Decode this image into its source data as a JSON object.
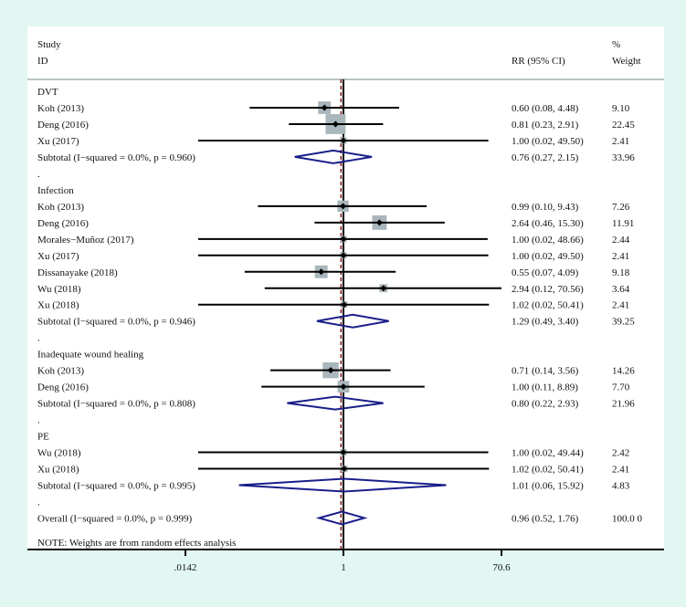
{
  "chart_data": {
    "type": "forest",
    "scale": "log",
    "xlim": [
      0.0142,
      70.6
    ],
    "xticks": [
      ".0142",
      "1",
      "70.6"
    ],
    "null_value": 1,
    "overall_value": 0.96,
    "header": {
      "study": "Study",
      "id": "ID",
      "effect": "RR (95% CI)",
      "weight_pct": "%",
      "weight": "Weight"
    },
    "colors": {
      "box": "#a9b6bb",
      "diamond": "#1a1f8a",
      "null_line": "#000000",
      "overall_line": "#8b1a1a",
      "background": "#e2f7f2"
    },
    "rows": [
      {
        "kind": "group",
        "label": "DVT"
      },
      {
        "kind": "study",
        "label": "Koh (2013)",
        "rr": 0.6,
        "lo": 0.08,
        "hi": 4.48,
        "text": "0.60 (0.08, 4.48)",
        "weight": "9.10"
      },
      {
        "kind": "study",
        "label": "Deng (2016)",
        "rr": 0.81,
        "lo": 0.23,
        "hi": 2.91,
        "text": "0.81 (0.23, 2.91)",
        "weight": "22.45"
      },
      {
        "kind": "study",
        "label": "Xu (2017)",
        "rr": 1.0,
        "lo": 0.02,
        "hi": 49.5,
        "text": "1.00 (0.02, 49.50)",
        "weight": "2.41"
      },
      {
        "kind": "subtotal",
        "label": "Subtotal  (I−squared = 0.0%, p = 0.960)",
        "rr": 0.76,
        "lo": 0.27,
        "hi": 2.15,
        "text": "0.76 (0.27, 2.15)",
        "weight": "33.96"
      },
      {
        "kind": "spacer",
        "label": "."
      },
      {
        "kind": "group",
        "label": "Infection"
      },
      {
        "kind": "study",
        "label": "Koh  (2013)",
        "rr": 0.99,
        "lo": 0.1,
        "hi": 9.43,
        "text": "0.99 (0.10, 9.43)",
        "weight": "7.26"
      },
      {
        "kind": "study",
        "label": "Deng  (2016)",
        "rr": 2.64,
        "lo": 0.46,
        "hi": 15.3,
        "text": "2.64 (0.46, 15.30)",
        "weight": "11.91"
      },
      {
        "kind": "study",
        "label": "Morales−Muñoz (2017)",
        "rr": 1.0,
        "lo": 0.02,
        "hi": 48.66,
        "text": "1.00 (0.02, 48.66)",
        "weight": "2.44"
      },
      {
        "kind": "study",
        "label": "Xu (2017)",
        "rr": 1.0,
        "lo": 0.02,
        "hi": 49.5,
        "text": "1.00 (0.02, 49.50)",
        "weight": "2.41"
      },
      {
        "kind": "study",
        "label": "Dissanayake  (2018)",
        "rr": 0.55,
        "lo": 0.07,
        "hi": 4.09,
        "text": "0.55 (0.07, 4.09)",
        "weight": "9.18"
      },
      {
        "kind": "study",
        "label": "Wu (2018)",
        "rr": 2.94,
        "lo": 0.12,
        "hi": 70.56,
        "text": "2.94 (0.12, 70.56)",
        "weight": "3.64"
      },
      {
        "kind": "study",
        "label": "Xu (2018)",
        "rr": 1.02,
        "lo": 0.02,
        "hi": 50.41,
        "text": "1.02 (0.02, 50.41)",
        "weight": "2.41"
      },
      {
        "kind": "subtotal",
        "label": "Subtotal  (I−squared = 0.0%, p = 0.946)",
        "rr": 1.29,
        "lo": 0.49,
        "hi": 3.4,
        "text": "1.29 (0.49, 3.40)",
        "weight": "39.25"
      },
      {
        "kind": "spacer",
        "label": "."
      },
      {
        "kind": "group",
        "label": "Inadequate wound healing"
      },
      {
        "kind": "study",
        "label": "Koh  (2013)",
        "rr": 0.71,
        "lo": 0.14,
        "hi": 3.56,
        "text": "0.71 (0.14, 3.56)",
        "weight": "14.26"
      },
      {
        "kind": "study",
        "label": "Deng (2016)",
        "rr": 1.0,
        "lo": 0.11,
        "hi": 8.89,
        "text": "1.00 (0.11, 8.89)",
        "weight": "7.70"
      },
      {
        "kind": "subtotal",
        "label": "Subtotal  (I−squared = 0.0%, p = 0.808)",
        "rr": 0.8,
        "lo": 0.22,
        "hi": 2.93,
        "text": "0.80 (0.22, 2.93)",
        "weight": "21.96"
      },
      {
        "kind": "spacer",
        "label": "."
      },
      {
        "kind": "group",
        "label": "PE"
      },
      {
        "kind": "study",
        "label": "Wu (2018)",
        "rr": 1.0,
        "lo": 0.02,
        "hi": 49.44,
        "text": "1.00 (0.02, 49.44)",
        "weight": "2.42"
      },
      {
        "kind": "study",
        "label": "Xu (2018)",
        "rr": 1.02,
        "lo": 0.02,
        "hi": 50.41,
        "text": "1.02 (0.02, 50.41)",
        "weight": "2.41"
      },
      {
        "kind": "subtotal",
        "label": "Subtotal  (I−squared = 0.0%, p = 0.995)",
        "rr": 1.01,
        "lo": 0.06,
        "hi": 15.92,
        "text": "1.01 (0.06, 15.92)",
        "weight": "4.83"
      },
      {
        "kind": "spacer",
        "label": "."
      },
      {
        "kind": "subtotal",
        "label": "Overall  (I−squared = 0.0%, p = 0.999)",
        "rr": 0.96,
        "lo": 0.52,
        "hi": 1.76,
        "text": "0.96 (0.52, 1.76)",
        "weight": "100.0 0"
      }
    ],
    "note": "NOTE: Weights are from random effects analysis"
  }
}
